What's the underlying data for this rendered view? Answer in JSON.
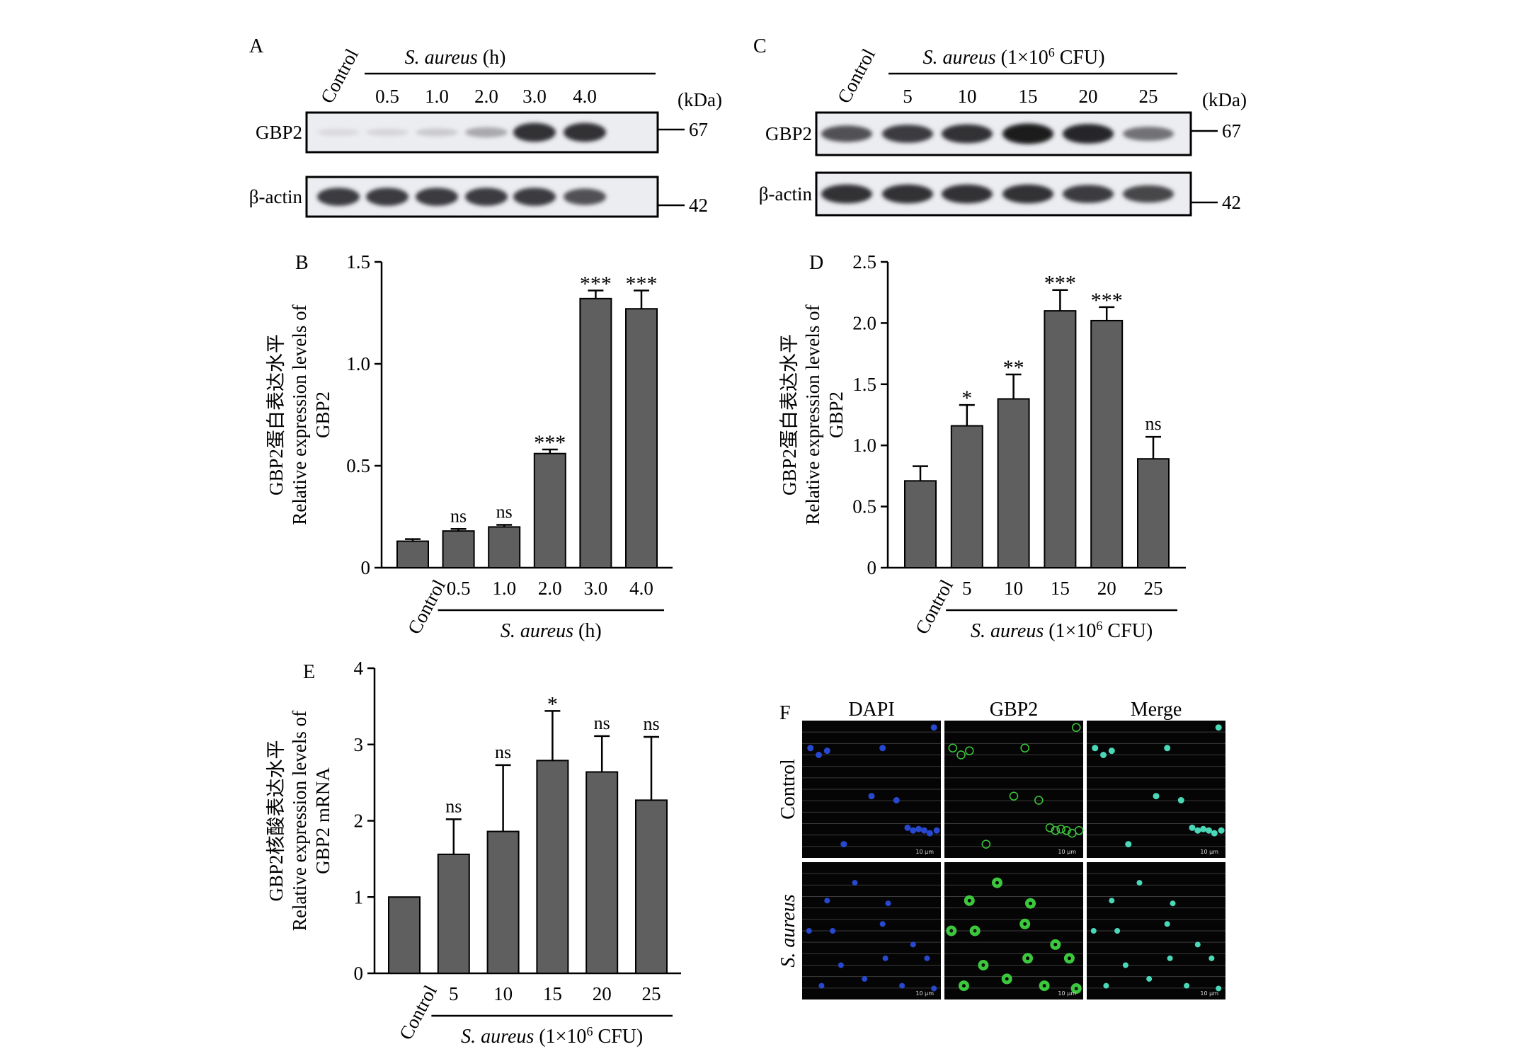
{
  "panel_labels": {
    "a": "A",
    "b": "B",
    "c": "C",
    "d": "D",
    "e": "E",
    "f": "F"
  },
  "blot_a": {
    "control": "Control",
    "group": "S. aureus",
    "group_unit": " (h)",
    "lanes": [
      "0.5",
      "1.0",
      "2.0",
      "3.0",
      "4.0"
    ],
    "kda": "(kDa)",
    "rows": [
      {
        "label": "GBP2",
        "marker": "67",
        "intensity": [
          0.08,
          0.1,
          0.15,
          0.3,
          0.85,
          0.85
        ]
      },
      {
        "label": "β-actin",
        "marker": "42",
        "intensity": [
          0.8,
          0.8,
          0.8,
          0.8,
          0.8,
          0.7
        ]
      }
    ]
  },
  "blot_c": {
    "control": "Control",
    "group": "S. aureus",
    "group_unit_pre": " (1×10",
    "group_unit_sup": "6",
    "group_unit_post": " CFU)",
    "lanes": [
      "5",
      "10",
      "15",
      "20",
      "25"
    ],
    "kda": "(kDa)",
    "rows": [
      {
        "label": "GBP2",
        "marker": "67",
        "intensity": [
          0.7,
          0.8,
          0.85,
          0.95,
          0.9,
          0.55
        ]
      },
      {
        "label": "β-actin",
        "marker": "42",
        "intensity": [
          0.85,
          0.85,
          0.85,
          0.85,
          0.8,
          0.75
        ]
      }
    ]
  },
  "chart_data": [
    {
      "id": "B",
      "type": "bar",
      "categories": [
        "Control",
        "0.5",
        "1.0",
        "2.0",
        "3.0",
        "4.0"
      ],
      "values": [
        0.13,
        0.18,
        0.2,
        0.56,
        1.32,
        1.27
      ],
      "errors": [
        0.01,
        0.01,
        0.01,
        0.02,
        0.04,
        0.09
      ],
      "significance": [
        "",
        "ns",
        "ns",
        "***",
        "***",
        "***"
      ],
      "ylim": [
        0,
        1.5
      ],
      "yticks": [
        "0",
        "0.5",
        "1.0",
        "1.5"
      ],
      "ytick_values": [
        0,
        0.5,
        1.0,
        1.5
      ],
      "ylabel_lines": [
        "GBP2蛋白表达水平",
        "Relative expression levels of",
        "GBP2"
      ],
      "group_label": "S. aureus",
      "group_unit": " (h)",
      "bar_color": "#5f5f5f"
    },
    {
      "id": "D",
      "type": "bar",
      "categories": [
        "Control",
        "5",
        "10",
        "15",
        "20",
        "25"
      ],
      "values": [
        0.71,
        1.16,
        1.38,
        2.1,
        2.02,
        0.89
      ],
      "errors": [
        0.12,
        0.17,
        0.2,
        0.17,
        0.11,
        0.18
      ],
      "significance": [
        "",
        "*",
        "**",
        "***",
        "***",
        "ns"
      ],
      "ylim": [
        0,
        2.5
      ],
      "yticks": [
        "0",
        "0.5",
        "1.0",
        "1.5",
        "2.0",
        "2.5"
      ],
      "ytick_values": [
        0,
        0.5,
        1.0,
        1.5,
        2.0,
        2.5
      ],
      "ylabel_lines": [
        "GBP2蛋白表达水平",
        "Relative expression levels of",
        "GBP2"
      ],
      "group_label": "S. aureus",
      "group_unit_pre": " (1×10",
      "group_unit_sup": "6",
      "group_unit_post": " CFU)",
      "bar_color": "#5f5f5f"
    },
    {
      "id": "E",
      "type": "bar",
      "categories": [
        "Control",
        "5",
        "10",
        "15",
        "20",
        "25"
      ],
      "values": [
        1.0,
        1.56,
        1.86,
        2.79,
        2.64,
        2.27
      ],
      "errors": [
        0.0,
        0.46,
        0.87,
        0.65,
        0.47,
        0.83
      ],
      "significance": [
        "",
        "ns",
        "ns",
        "*",
        "ns",
        "ns"
      ],
      "ylim": [
        0,
        4
      ],
      "yticks": [
        "0",
        "1",
        "2",
        "3",
        "4"
      ],
      "ytick_values": [
        0,
        1,
        2,
        3,
        4
      ],
      "ylabel_lines": [
        "GBP2核酸表达水平",
        "Relative expression levels of",
        "GBP2 mRNA"
      ],
      "group_label": "S. aureus",
      "group_unit_pre": " (1×10",
      "group_unit_sup": "6",
      "group_unit_post": " CFU)",
      "bar_color": "#5f5f5f"
    }
  ],
  "micrographs": {
    "columns": [
      "DAPI",
      "GBP2",
      "Merge"
    ],
    "rows": [
      "Control",
      "S. aureus"
    ],
    "scale": "10 μm",
    "colors": {
      "dapi": "#2848d0",
      "gbp2": "#3cc83c",
      "merge": "#4ad8b8"
    }
  }
}
